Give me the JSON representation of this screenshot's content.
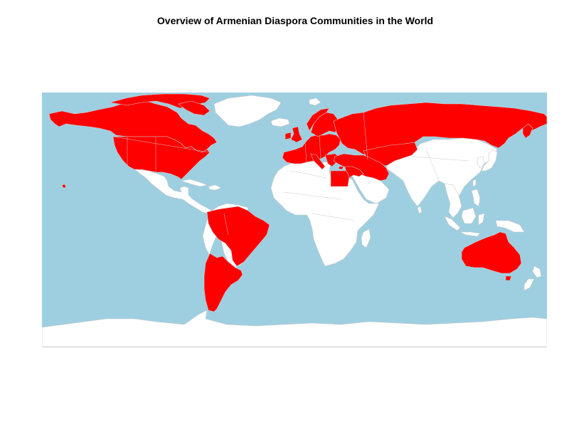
{
  "title": "Overview of Armenian Diaspora Communities in the World",
  "colors": {
    "ocean": "#9ecfe0",
    "highlighted": "#ff0000",
    "other": "#ffffff",
    "border": "#c9c9c9"
  },
  "highlighted_countries": [
    "Canada",
    "United States",
    "Brazil",
    "Argentina",
    "Uruguay",
    "Chile",
    "United Kingdom",
    "Ireland",
    "France",
    "Spain",
    "Belgium",
    "Netherlands",
    "Germany",
    "Switzerland",
    "Italy",
    "Austria",
    "Czechia",
    "Poland",
    "Greece",
    "Bulgaria",
    "Romania",
    "Hungary",
    "Sweden",
    "Norway",
    "Finland",
    "Denmark",
    "Estonia",
    "Latvia",
    "Lithuania",
    "Belarus",
    "Ukraine",
    "Moldova",
    "Russia",
    "Georgia",
    "Armenia",
    "Azerbaijan",
    "Turkey",
    "Cyprus",
    "Syria",
    "Lebanon",
    "Israel",
    "Jordan",
    "Iraq",
    "Iran",
    "Egypt",
    "Kazakhstan",
    "Turkmenistan",
    "Uzbekistan",
    "Kyrgyzstan",
    "Tajikistan",
    "Australia"
  ]
}
